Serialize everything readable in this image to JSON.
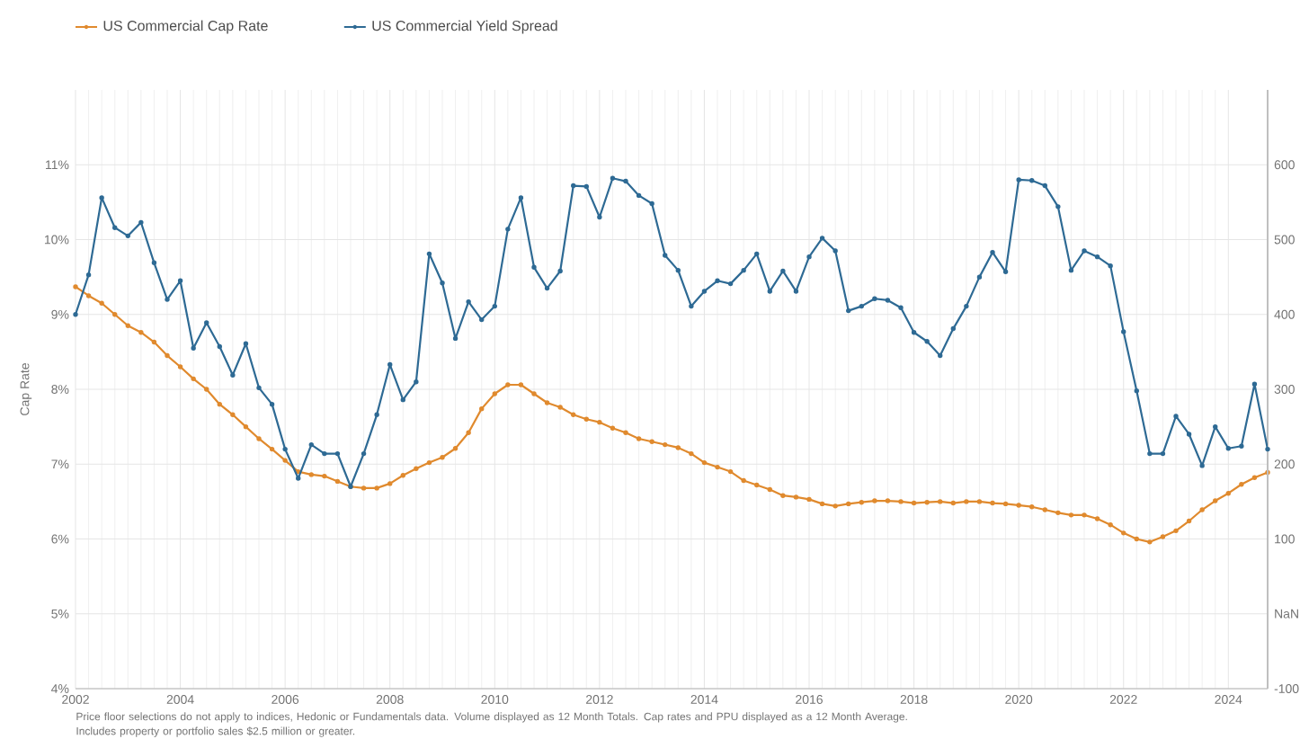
{
  "chart_data": {
    "type": "line",
    "ylabel": "Cap Rate",
    "x": [
      2002.0,
      2002.25,
      2002.5,
      2002.75,
      2003.0,
      2003.25,
      2003.5,
      2003.75,
      2004.0,
      2004.25,
      2004.5,
      2004.75,
      2005.0,
      2005.25,
      2005.5,
      2005.75,
      2006.0,
      2006.25,
      2006.5,
      2006.75,
      2007.0,
      2007.25,
      2007.5,
      2007.75,
      2008.0,
      2008.25,
      2008.5,
      2008.75,
      2009.0,
      2009.25,
      2009.5,
      2009.75,
      2010.0,
      2010.25,
      2010.5,
      2010.75,
      2011.0,
      2011.25,
      2011.5,
      2011.75,
      2012.0,
      2012.25,
      2012.5,
      2012.75,
      2013.0,
      2013.25,
      2013.5,
      2013.75,
      2014.0,
      2014.25,
      2014.5,
      2014.75,
      2015.0,
      2015.25,
      2015.5,
      2015.75,
      2016.0,
      2016.25,
      2016.5,
      2016.75,
      2017.0,
      2017.25,
      2017.5,
      2017.75,
      2018.0,
      2018.25,
      2018.5,
      2018.75,
      2019.0,
      2019.25,
      2019.5,
      2019.75,
      2020.0,
      2020.25,
      2020.5,
      2020.75,
      2021.0,
      2021.25,
      2021.5,
      2021.75,
      2022.0,
      2022.25,
      2022.5,
      2022.75,
      2023.0,
      2023.25,
      2023.5,
      2023.75,
      2024.0,
      2024.25,
      2024.5,
      2024.75
    ],
    "series": [
      {
        "name": "US Commercial Cap Rate",
        "color": "#e08a2e",
        "values": [
          9.37,
          9.25,
          9.15,
          9.0,
          8.85,
          8.76,
          8.63,
          8.45,
          8.3,
          8.14,
          8.0,
          7.8,
          7.66,
          7.5,
          7.34,
          7.2,
          7.05,
          6.9,
          6.86,
          6.84,
          6.77,
          6.7,
          6.68,
          6.68,
          6.74,
          6.85,
          6.94,
          7.02,
          7.09,
          7.21,
          7.42,
          7.74,
          7.94,
          8.06,
          8.06,
          7.94,
          7.82,
          7.76,
          7.66,
          7.6,
          7.56,
          7.48,
          7.42,
          7.34,
          7.3,
          7.26,
          7.22,
          7.14,
          7.02,
          6.96,
          6.9,
          6.78,
          6.72,
          6.66,
          6.58,
          6.56,
          6.53,
          6.47,
          6.44,
          6.47,
          6.49,
          6.51,
          6.51,
          6.5,
          6.48,
          6.49,
          6.5,
          6.48,
          6.5,
          6.5,
          6.48,
          6.47,
          6.45,
          6.43,
          6.39,
          6.35,
          6.32,
          6.32,
          6.27,
          6.19,
          6.08,
          6.0,
          5.96,
          6.03,
          6.11,
          6.24,
          6.39,
          6.51,
          6.61,
          6.73,
          6.82,
          6.89
        ]
      },
      {
        "name": "US Commercial Yield Spread",
        "color": "#2e6a94",
        "axis": "y2",
        "values": [
          400,
          453,
          556,
          516,
          505,
          523,
          469,
          420,
          445,
          355,
          389,
          357,
          319,
          361,
          302,
          280,
          220,
          181,
          226,
          214,
          214,
          170,
          214,
          266,
          333,
          286,
          310,
          481,
          442,
          368,
          417,
          393,
          411,
          514,
          556,
          463,
          435,
          458,
          572,
          571,
          530,
          582,
          578,
          559,
          548,
          479,
          459,
          411,
          431,
          445,
          441,
          459,
          481,
          431,
          458,
          431,
          477,
          502,
          485,
          405,
          411,
          421,
          419,
          409,
          376,
          364,
          345,
          381,
          411,
          450,
          483,
          457,
          580,
          579,
          572,
          544,
          459,
          485,
          477,
          465,
          377,
          298,
          214,
          214,
          264,
          240,
          198,
          250,
          221,
          224,
          307,
          220
        ]
      }
    ],
    "xlim": [
      2002,
      2024.75
    ],
    "xticks": [
      2002,
      2004,
      2006,
      2008,
      2010,
      2012,
      2014,
      2016,
      2018,
      2020,
      2022,
      2024
    ],
    "ylim": [
      4,
      12
    ],
    "yticks": [
      {
        "value": 4,
        "label": "4%"
      },
      {
        "value": 5,
        "label": "5%"
      },
      {
        "value": 6,
        "label": "6%"
      },
      {
        "value": 7,
        "label": "7%"
      },
      {
        "value": 8,
        "label": "8%"
      },
      {
        "value": 9,
        "label": "9%"
      },
      {
        "value": 10,
        "label": "10%"
      },
      {
        "value": 11,
        "label": "11%"
      }
    ],
    "y2lim": [
      -100,
      700
    ],
    "y2ticks": [
      -100,
      {
        "value": 0,
        "label": "NaN"
      },
      100,
      200,
      300,
      400,
      500,
      600
    ],
    "grid": true,
    "legend": "top left",
    "marker": "circle",
    "line_style": "solid",
    "annotations": [
      "Price floor selections do not apply to indices, Hedonic or Fundamentals data. Volume displayed as 12 Month Totals. Cap rates and PPU displayed as a 12 Month Average.",
      "Includes property or portfolio sales $2.5 million or greater."
    ]
  }
}
